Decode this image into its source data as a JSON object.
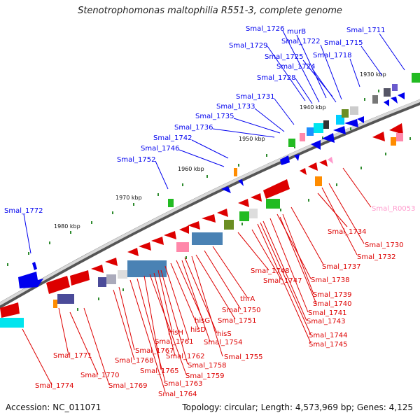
{
  "title": "Stenotrophomonas maltophilia R551-3, complete genome",
  "accession": "Accession: NC_011071",
  "summary": "Topology: circular; Length: 4,573,969 bp; Genes: 4,125",
  "colors": {
    "top": "#0000ee",
    "bottom": "#dd0000",
    "rna": "#ff99cc"
  },
  "kbp_ticks": [
    "1930 kbp",
    "1940 kbp",
    "1950 kbp",
    "1960 kbp",
    "1970 kbp",
    "1980 kbp"
  ],
  "top_labels": [
    "Smal_1726",
    "murB",
    "Smal_1711",
    "Smal_1729",
    "Smal_1722",
    "Smal_1715",
    "Smal_1725",
    "Smal_1718",
    "Smal_1724",
    "Smal_1728",
    "Smal_1731",
    "Smal_1733",
    "Smal_1735",
    "Smal_1736",
    "Smal_1742",
    "Smal_1746",
    "Smal_1752",
    "Smal_1772"
  ],
  "bottom_labels": [
    "Smal_R0053",
    "Smal_1734",
    "Smal_1730",
    "Smal_1732",
    "Smal_1737",
    "Smal_1748",
    "Smal_1738",
    "Smal_1747",
    "Smal_1739",
    "Smal_1740",
    "thrA",
    "Smal_1741",
    "Smal_1750",
    "Smal_1743",
    "Smal_1751",
    "hisG",
    "hisD",
    "hisS",
    "Smal_1744",
    "hisH",
    "Smal_1745",
    "Smal_1761",
    "Smal_1754",
    "Smal_1767",
    "Smal_1755",
    "Smal_1768",
    "Smal_1762",
    "Smal_1771",
    "Smal_1758",
    "Smal_1765",
    "Smal_1759",
    "Smal_1770",
    "Smal_1763",
    "Smal_1769",
    "Smal_1774",
    "Smal_1764"
  ]
}
